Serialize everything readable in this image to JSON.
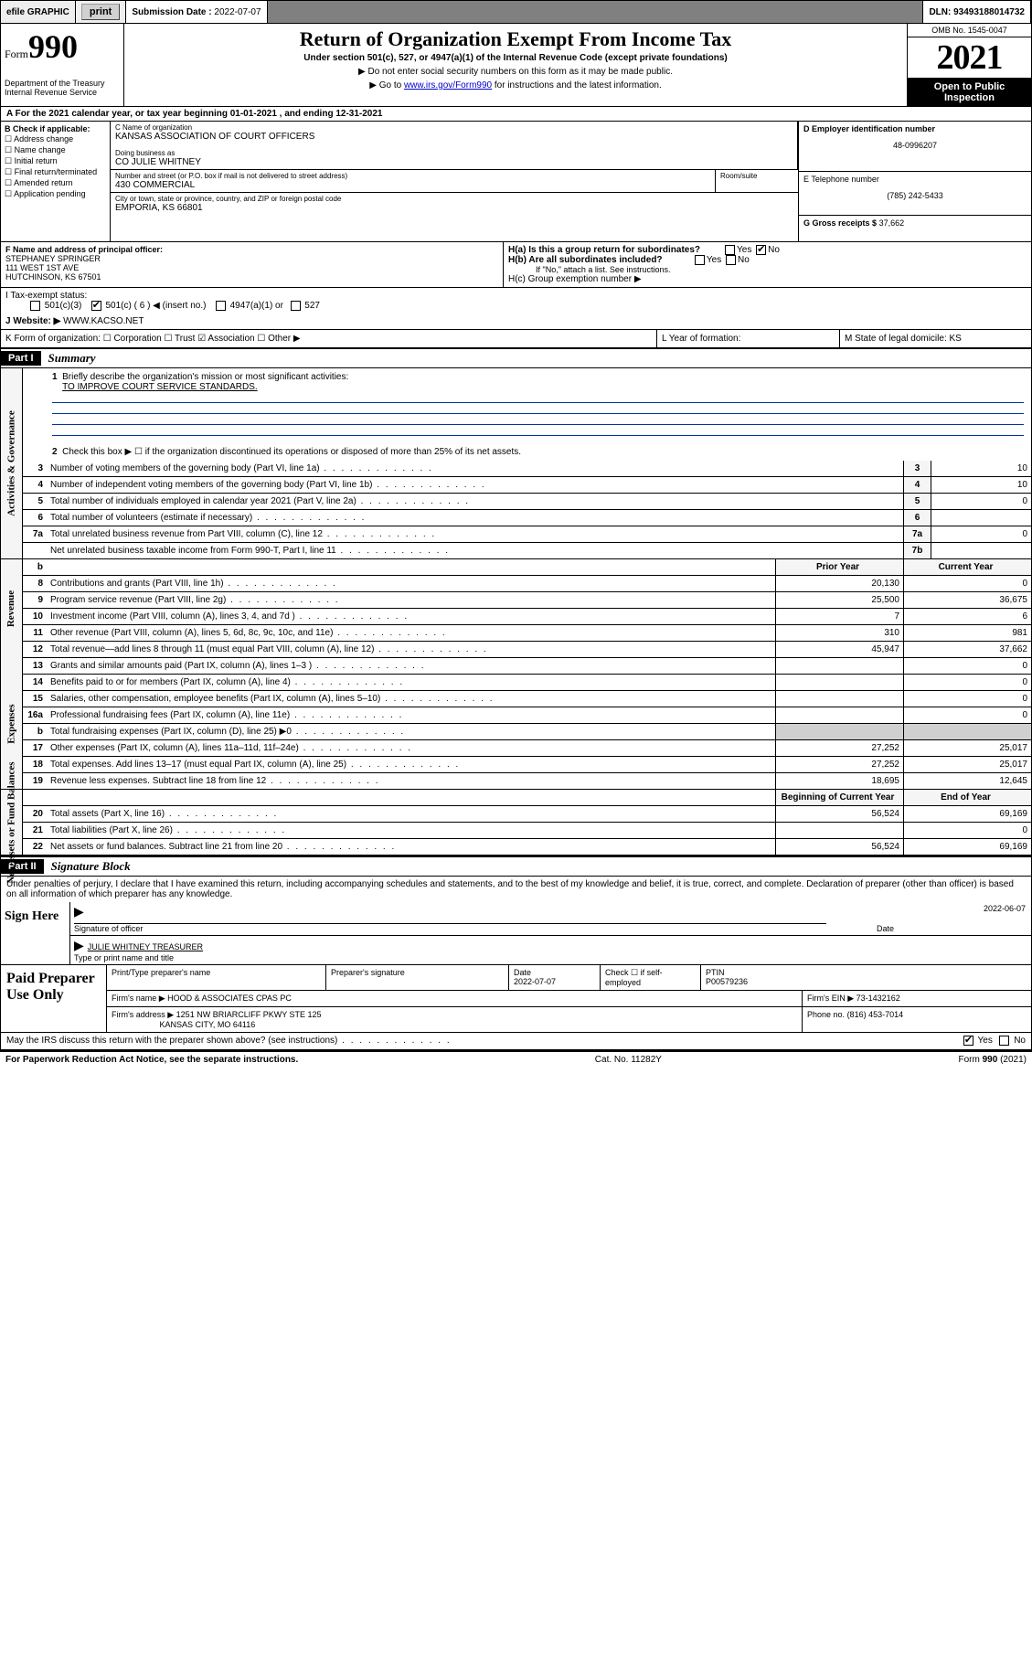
{
  "topbar": {
    "efile": "efile GRAPHIC",
    "print": "print",
    "submission_label": "Submission Date :",
    "submission_date": "2022-07-07",
    "dln_label": "DLN:",
    "dln": "93493188014732"
  },
  "header": {
    "form_prefix": "Form",
    "form_number": "990",
    "dept": "Department of the Treasury\nInternal Revenue Service",
    "title": "Return of Organization Exempt From Income Tax",
    "subtitle": "Under section 501(c), 527, or 4947(a)(1) of the Internal Revenue Code (except private foundations)",
    "instr1": "Do not enter social security numbers on this form as it may be made public.",
    "instr2_pre": "Go to ",
    "instr2_link": "www.irs.gov/Form990",
    "instr2_post": " for instructions and the latest information.",
    "omb": "OMB No. 1545-0047",
    "year": "2021",
    "open": "Open to Public Inspection"
  },
  "rowA": "For the 2021 calendar year, or tax year beginning 01-01-2021   , and ending 12-31-2021",
  "boxB": {
    "label": "B Check if applicable:",
    "items": [
      "Address change",
      "Name change",
      "Initial return",
      "Final return/terminated",
      "Amended return",
      "Application pending"
    ]
  },
  "boxC": {
    "name_label": "C Name of organization",
    "name": "KANSAS ASSOCIATION OF COURT OFFICERS",
    "dba_label": "Doing business as",
    "dba": "CO JULIE WHITNEY",
    "addr_label": "Number and street (or P.O. box if mail is not delivered to street address)",
    "room_label": "Room/suite",
    "addr": "430 COMMERCIAL",
    "city_label": "City or town, state or province, country, and ZIP or foreign postal code",
    "city": "EMPORIA, KS  66801"
  },
  "boxD": {
    "label": "D Employer identification number",
    "value": "48-0996207"
  },
  "boxE": {
    "label": "E Telephone number",
    "value": "(785) 242-5433"
  },
  "boxG": {
    "label": "G Gross receipts $",
    "value": "37,662"
  },
  "boxF": {
    "label": "F Name and address of principal officer:",
    "line1": "STEPHANEY SPRINGER",
    "line2": "111 WEST 1ST AVE",
    "line3": "HUTCHINSON, KS  67501"
  },
  "boxH": {
    "a": "H(a)  Is this a group return for subordinates?",
    "b": "H(b)  Are all subordinates included?",
    "b_note": "If \"No,\" attach a list. See instructions.",
    "c": "H(c)  Group exemption number ▶",
    "yes": "Yes",
    "no": "No"
  },
  "rowI": {
    "label": "I   Tax-exempt status:",
    "opts": [
      "501(c)(3)",
      "501(c) ( 6 ) ◀ (insert no.)",
      "4947(a)(1) or",
      "527"
    ]
  },
  "rowJ": {
    "label": "J   Website: ▶",
    "value": "WWW.KACSO.NET"
  },
  "rowK": "K Form of organization:   ☐ Corporation   ☐ Trust   ☑ Association   ☐ Other ▶",
  "rowL": "L Year of formation:",
  "rowM": "M State of legal domicile: KS",
  "part1": {
    "header": "Part I",
    "title": "Summary",
    "line1_label": "Briefly describe the organization's mission or most significant activities:",
    "line1_value": "TO IMPROVE COURT SERVICE STANDARDS.",
    "line2": "Check this box ▶ ☐  if the organization discontinued its operations or disposed of more than 25% of its net assets.",
    "lines_single": [
      {
        "n": "3",
        "t": "Number of voting members of the governing body (Part VI, line 1a)",
        "box": "3",
        "v": "10"
      },
      {
        "n": "4",
        "t": "Number of independent voting members of the governing body (Part VI, line 1b)",
        "box": "4",
        "v": "10"
      },
      {
        "n": "5",
        "t": "Total number of individuals employed in calendar year 2021 (Part V, line 2a)",
        "box": "5",
        "v": "0"
      },
      {
        "n": "6",
        "t": "Total number of volunteers (estimate if necessary)",
        "box": "6",
        "v": ""
      },
      {
        "n": "7a",
        "t": "Total unrelated business revenue from Part VIII, column (C), line 12",
        "box": "7a",
        "v": "0"
      },
      {
        "n": "",
        "t": "Net unrelated business taxable income from Form 990-T, Part I, line 11",
        "box": "7b",
        "v": ""
      }
    ],
    "col_headers": {
      "b": "b",
      "prior": "Prior Year",
      "current": "Current Year"
    },
    "revenue": [
      {
        "n": "8",
        "t": "Contributions and grants (Part VIII, line 1h)",
        "p": "20,130",
        "c": "0"
      },
      {
        "n": "9",
        "t": "Program service revenue (Part VIII, line 2g)",
        "p": "25,500",
        "c": "36,675"
      },
      {
        "n": "10",
        "t": "Investment income (Part VIII, column (A), lines 3, 4, and 7d )",
        "p": "7",
        "c": "6"
      },
      {
        "n": "11",
        "t": "Other revenue (Part VIII, column (A), lines 5, 6d, 8c, 9c, 10c, and 11e)",
        "p": "310",
        "c": "981"
      },
      {
        "n": "12",
        "t": "Total revenue—add lines 8 through 11 (must equal Part VIII, column (A), line 12)",
        "p": "45,947",
        "c": "37,662"
      }
    ],
    "expenses": [
      {
        "n": "13",
        "t": "Grants and similar amounts paid (Part IX, column (A), lines 1–3 )",
        "p": "",
        "c": "0"
      },
      {
        "n": "14",
        "t": "Benefits paid to or for members (Part IX, column (A), line 4)",
        "p": "",
        "c": "0"
      },
      {
        "n": "15",
        "t": "Salaries, other compensation, employee benefits (Part IX, column (A), lines 5–10)",
        "p": "",
        "c": "0"
      },
      {
        "n": "16a",
        "t": "Professional fundraising fees (Part IX, column (A), line 11e)",
        "p": "",
        "c": "0"
      },
      {
        "n": "b",
        "t": "Total fundraising expenses (Part IX, column (D), line 25) ▶0",
        "p": "shade",
        "c": "shade"
      },
      {
        "n": "17",
        "t": "Other expenses (Part IX, column (A), lines 11a–11d, 11f–24e)",
        "p": "27,252",
        "c": "25,017"
      },
      {
        "n": "18",
        "t": "Total expenses. Add lines 13–17 (must equal Part IX, column (A), line 25)",
        "p": "27,252",
        "c": "25,017"
      },
      {
        "n": "19",
        "t": "Revenue less expenses. Subtract line 18 from line 12",
        "p": "18,695",
        "c": "12,645"
      }
    ],
    "balance_headers": {
      "begin": "Beginning of Current Year",
      "end": "End of Year"
    },
    "balances": [
      {
        "n": "20",
        "t": "Total assets (Part X, line 16)",
        "p": "56,524",
        "c": "69,169"
      },
      {
        "n": "21",
        "t": "Total liabilities (Part X, line 26)",
        "p": "",
        "c": "0"
      },
      {
        "n": "22",
        "t": "Net assets or fund balances. Subtract line 21 from line 20",
        "p": "56,524",
        "c": "69,169"
      }
    ]
  },
  "tabs": {
    "gov": "Activities & Governance",
    "rev": "Revenue",
    "exp": "Expenses",
    "net": "Net Assets or Fund Balances"
  },
  "part2": {
    "header": "Part II",
    "title": "Signature Block",
    "penalty": "Under penalties of perjury, I declare that I have examined this return, including accompanying schedules and statements, and to the best of my knowledge and belief, it is true, correct, and complete. Declaration of preparer (other than officer) is based on all information of which preparer has any knowledge.",
    "sign_here": "Sign Here",
    "sig_officer": "Signature of officer",
    "date_label": "Date",
    "sig_date": "2022-06-07",
    "name_title": "JULIE WHITNEY TREASURER",
    "name_label": "Type or print name and title",
    "paid": "Paid Preparer Use Only",
    "prep_name": "Print/Type preparer's name",
    "prep_sig": "Preparer's signature",
    "prep_date_label": "Date",
    "prep_date": "2022-07-07",
    "check_self": "Check ☐ if self-employed",
    "ptin_label": "PTIN",
    "ptin": "P00579236",
    "firm_name_label": "Firm's name    ▶",
    "firm_name": "HOOD & ASSOCIATES CPAS PC",
    "firm_ein_label": "Firm's EIN ▶",
    "firm_ein": "73-1432162",
    "firm_addr_label": "Firm's address ▶",
    "firm_addr1": "1251 NW BRIARCLIFF PKWY STE 125",
    "firm_addr2": "KANSAS CITY, MO  64116",
    "phone_label": "Phone no.",
    "phone": "(816) 453-7014",
    "may_irs": "May the IRS discuss this return with the preparer shown above? (see instructions)",
    "yes": "Yes",
    "no": "No"
  },
  "footer": {
    "left": "For Paperwork Reduction Act Notice, see the separate instructions.",
    "mid": "Cat. No. 11282Y",
    "right_pre": "Form ",
    "right_form": "990",
    "right_post": " (2021)"
  },
  "colors": {
    "link": "#0000cc",
    "rule": "#003399",
    "shade": "#d0d0d0"
  }
}
